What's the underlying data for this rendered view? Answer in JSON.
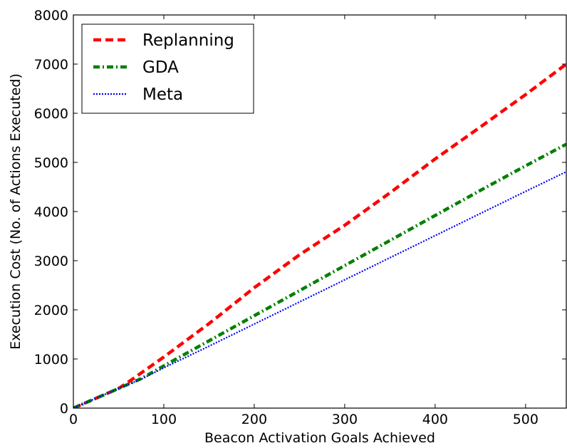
{
  "chart_data": {
    "type": "line",
    "title": "",
    "xlabel": "Beacon Activation Goals Achieved",
    "ylabel": "Execution Cost (No. of Actions Executed)",
    "xlim": [
      0,
      545
    ],
    "ylim": [
      0,
      8000
    ],
    "xticks": [
      0,
      100,
      200,
      300,
      400,
      500
    ],
    "yticks": [
      0,
      1000,
      2000,
      3000,
      4000,
      5000,
      6000,
      7000,
      8000
    ],
    "xtick_labels": [
      "0",
      "100",
      "200",
      "300",
      "400",
      "500"
    ],
    "ytick_labels": [
      "0",
      "1000",
      "2000",
      "3000",
      "4000",
      "5000",
      "6000",
      "7000",
      "8000"
    ],
    "grid": false,
    "legend_position": "top-left",
    "series": [
      {
        "name": "Replanning",
        "color": "#ff0000",
        "style": "dashed",
        "x": [
          0,
          25,
          50,
          60,
          70,
          100,
          150,
          200,
          250,
          300,
          350,
          400,
          450,
          500,
          545
        ],
        "y": [
          0,
          200,
          400,
          520,
          650,
          1040,
          1720,
          2450,
          3120,
          3720,
          4380,
          5070,
          5720,
          6380,
          7000
        ]
      },
      {
        "name": "GDA",
        "color": "#008000",
        "style": "dashdot",
        "x": [
          0,
          25,
          50,
          75,
          100,
          150,
          200,
          250,
          300,
          350,
          400,
          450,
          500,
          545
        ],
        "y": [
          0,
          200,
          400,
          600,
          860,
          1370,
          1880,
          2390,
          2900,
          3410,
          3920,
          4430,
          4930,
          5370
        ]
      },
      {
        "name": "Meta",
        "color": "#0000ff",
        "style": "dotted",
        "x": [
          0,
          25,
          50,
          75,
          100,
          150,
          200,
          250,
          300,
          350,
          400,
          450,
          500,
          545
        ],
        "y": [
          0,
          200,
          400,
          590,
          820,
          1260,
          1710,
          2160,
          2610,
          3060,
          3510,
          3960,
          4410,
          4810
        ]
      }
    ]
  }
}
